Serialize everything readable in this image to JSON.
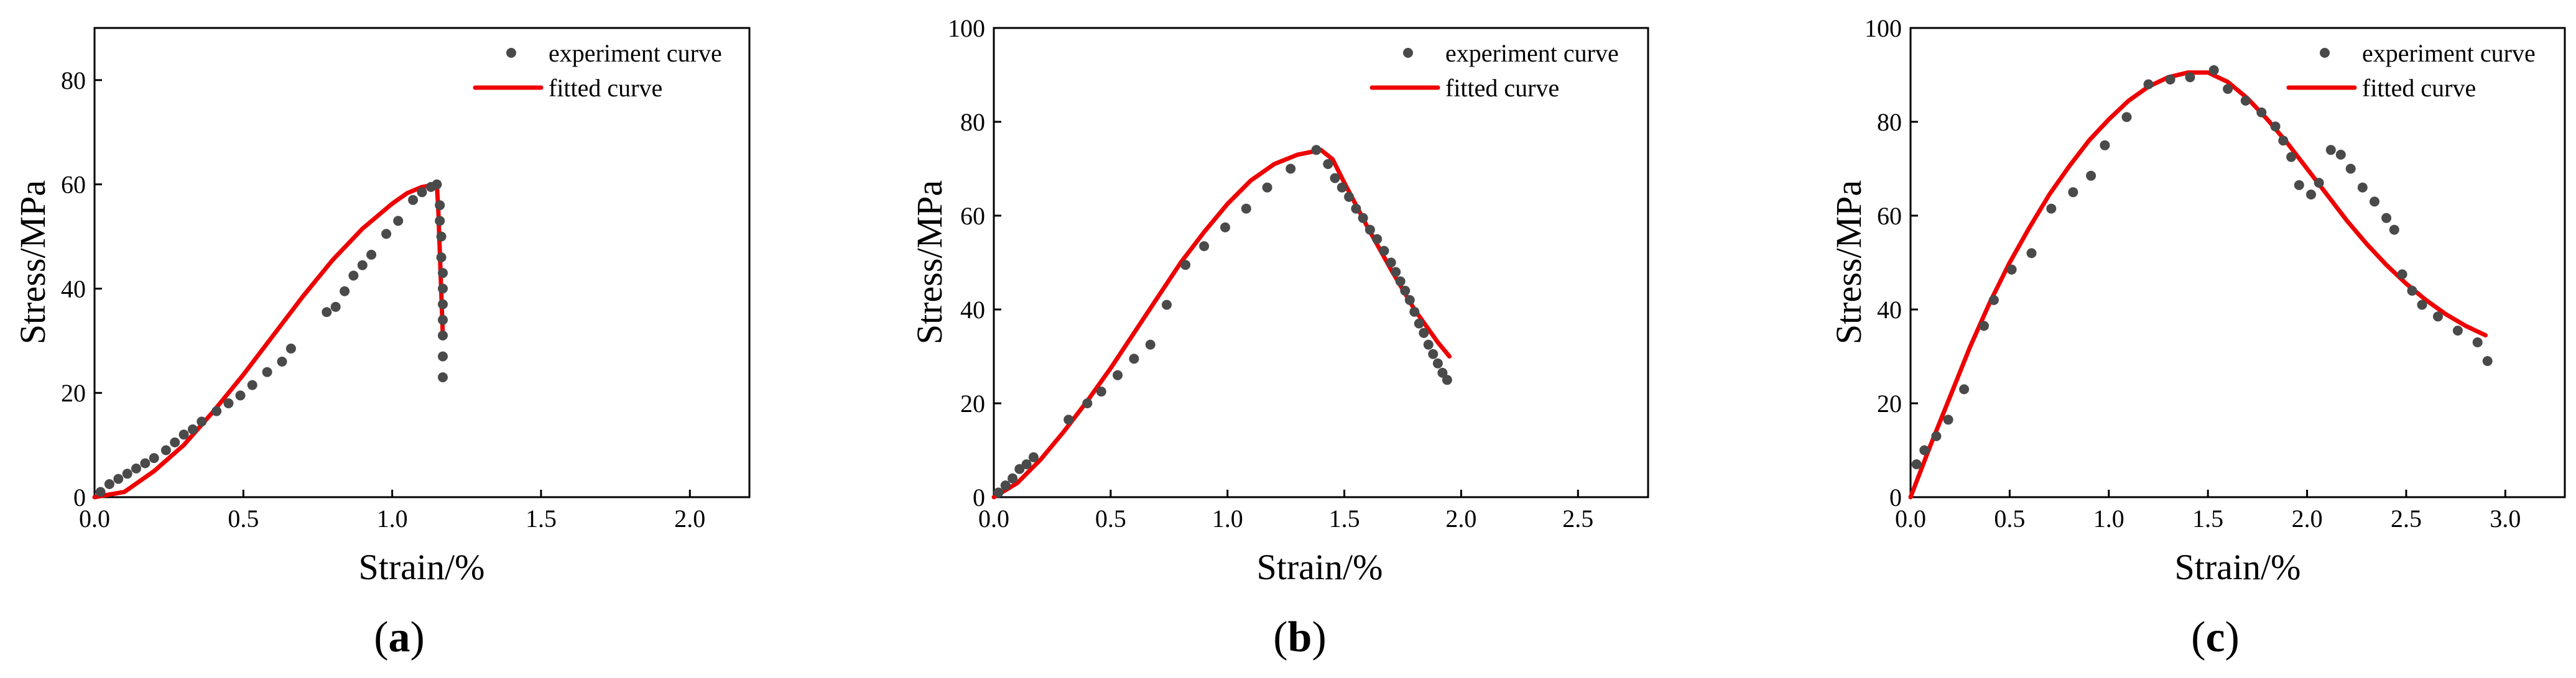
{
  "chart_data": [
    {
      "type": "scatter",
      "panel_label": "a",
      "xlabel": "Strain/%",
      "ylabel": "Stress/MPa",
      "xlim": [
        0,
        2.2
      ],
      "ylim": [
        0,
        90
      ],
      "xticks": [
        "0.0",
        "0.5",
        "1.0",
        "1.5",
        "2.0"
      ],
      "xtick_values": [
        0,
        0.5,
        1.0,
        1.5,
        2.0
      ],
      "yticks": [
        "0",
        "20",
        "40",
        "60",
        "80"
      ],
      "ytick_values": [
        0,
        20,
        40,
        60,
        80
      ],
      "legend": {
        "position": "top-right",
        "experiment": "experiment curve",
        "fitted": "fitted curve"
      },
      "series": [
        {
          "name": "experiment curve",
          "kind": "scatter",
          "x": [
            0.02,
            0.05,
            0.08,
            0.11,
            0.14,
            0.17,
            0.2,
            0.24,
            0.27,
            0.3,
            0.33,
            0.36,
            0.41,
            0.45,
            0.49,
            0.53,
            0.58,
            0.63,
            0.66,
            0.78,
            0.81,
            0.84,
            0.87,
            0.9,
            0.93,
            0.98,
            1.02,
            1.07,
            1.1,
            1.13,
            1.15,
            1.16,
            1.16,
            1.165,
            1.165,
            1.17,
            1.17,
            1.17,
            1.17,
            1.17,
            1.17,
            1.17
          ],
          "y": [
            1,
            2.5,
            3.5,
            4.5,
            5.5,
            6.5,
            7.5,
            9,
            10.5,
            12,
            13,
            14.5,
            16.5,
            18,
            19.5,
            21.5,
            24,
            26,
            28.5,
            35.5,
            36.5,
            39.5,
            42.5,
            44.5,
            46.5,
            50.5,
            53,
            57,
            58.5,
            59.5,
            60,
            56,
            53,
            50,
            46,
            43,
            40,
            37,
            34,
            31,
            27,
            23
          ]
        },
        {
          "name": "fitted curve",
          "kind": "line",
          "x": [
            0.0,
            0.1,
            0.2,
            0.3,
            0.4,
            0.5,
            0.6,
            0.7,
            0.8,
            0.9,
            1.0,
            1.05,
            1.1,
            1.15,
            1.155,
            1.16,
            1.165,
            1.17
          ],
          "y": [
            0,
            1,
            5,
            10,
            16.5,
            23.5,
            31,
            38.5,
            45.5,
            51.5,
            56.3,
            58.3,
            59.5,
            60,
            55,
            47,
            39,
            31
          ]
        }
      ]
    },
    {
      "type": "scatter",
      "panel_label": "b",
      "xlabel": "Strain/%",
      "ylabel": "Stress/MPa",
      "xlim": [
        0,
        2.8
      ],
      "ylim": [
        0,
        100
      ],
      "xticks": [
        "0.0",
        "0.5",
        "1.0",
        "1.5",
        "2.0",
        "2.5"
      ],
      "xtick_values": [
        0,
        0.5,
        1.0,
        1.5,
        2.0,
        2.5
      ],
      "yticks": [
        "0",
        "20",
        "40",
        "60",
        "80",
        "100"
      ],
      "ytick_values": [
        0,
        20,
        40,
        60,
        80,
        100
      ],
      "legend": {
        "position": "top-right",
        "experiment": "experiment curve",
        "fitted": "fitted curve"
      },
      "series": [
        {
          "name": "experiment curve",
          "kind": "scatter",
          "x": [
            0.02,
            0.05,
            0.08,
            0.11,
            0.14,
            0.17,
            0.32,
            0.4,
            0.46,
            0.53,
            0.6,
            0.67,
            0.74,
            0.82,
            0.9,
            0.99,
            1.08,
            1.17,
            1.27,
            1.38,
            1.43,
            1.46,
            1.49,
            1.52,
            1.55,
            1.58,
            1.61,
            1.64,
            1.67,
            1.7,
            1.72,
            1.74,
            1.76,
            1.78,
            1.8,
            1.82,
            1.84,
            1.86,
            1.88,
            1.9,
            1.92,
            1.94
          ],
          "y": [
            1,
            2.5,
            4,
            6,
            7,
            8.5,
            16.5,
            20,
            22.5,
            26,
            29.5,
            32.5,
            41,
            49.5,
            53.5,
            57.5,
            61.5,
            66,
            70,
            74,
            71,
            68,
            66,
            64,
            61.5,
            59.5,
            57,
            55,
            52.5,
            50,
            48,
            46,
            44,
            42,
            39.5,
            37,
            35,
            32.5,
            30.5,
            28.5,
            26.5,
            25
          ]
        },
        {
          "name": "fitted curve",
          "kind": "line",
          "x": [
            0.0,
            0.1,
            0.2,
            0.3,
            0.4,
            0.5,
            0.6,
            0.7,
            0.8,
            0.9,
            1.0,
            1.1,
            1.2,
            1.3,
            1.4,
            1.45,
            1.5,
            1.6,
            1.7,
            1.8,
            1.9,
            1.95
          ],
          "y": [
            0,
            3,
            8,
            14,
            20.5,
            27.5,
            35,
            42.5,
            50,
            56.5,
            62.5,
            67.5,
            71,
            73,
            74,
            72,
            67,
            57.5,
            48.5,
            40,
            33,
            30
          ]
        }
      ]
    },
    {
      "type": "scatter",
      "panel_label": "c",
      "xlabel": "Strain/%",
      "ylabel": "Stress/MPa",
      "xlim": [
        0,
        3.3
      ],
      "ylim": [
        0,
        100
      ],
      "xticks": [
        "0.0",
        "0.5",
        "1.0",
        "1.5",
        "2.0",
        "2.5",
        "3.0"
      ],
      "xtick_values": [
        0,
        0.5,
        1.0,
        1.5,
        2.0,
        2.5,
        3.0
      ],
      "yticks": [
        "0",
        "20",
        "40",
        "60",
        "80",
        "100"
      ],
      "ytick_values": [
        0,
        20,
        40,
        60,
        80,
        100
      ],
      "legend": {
        "position": "top-right",
        "experiment": "experiment curve",
        "fitted": "fitted curve"
      },
      "series": [
        {
          "name": "experiment curve",
          "kind": "scatter",
          "x": [
            0.03,
            0.07,
            0.13,
            0.19,
            0.27,
            0.37,
            0.42,
            0.51,
            0.61,
            0.71,
            0.82,
            0.91,
            0.98,
            1.09,
            1.2,
            1.31,
            1.41,
            1.53,
            1.6,
            1.69,
            1.77,
            1.84,
            1.88,
            1.92,
            1.96,
            2.02,
            2.06,
            2.12,
            2.17,
            2.22,
            2.28,
            2.34,
            2.4,
            2.44,
            2.48,
            2.53,
            2.58,
            2.66,
            2.76,
            2.86,
            2.91
          ],
          "y": [
            7,
            10,
            13,
            16.5,
            23,
            36.5,
            42,
            48.5,
            52,
            61.5,
            65,
            68.5,
            75,
            81,
            88,
            89,
            89.5,
            91,
            87,
            84.5,
            82,
            79,
            76,
            72.5,
            66.5,
            64.5,
            67,
            74,
            73,
            70,
            66,
            63,
            59.5,
            57,
            47.5,
            44,
            41,
            38.5,
            35.5,
            33,
            29
          ]
        },
        {
          "name": "fitted curve",
          "kind": "line",
          "x": [
            0.0,
            0.1,
            0.2,
            0.3,
            0.4,
            0.5,
            0.6,
            0.7,
            0.8,
            0.9,
            1.0,
            1.1,
            1.2,
            1.3,
            1.4,
            1.5,
            1.6,
            1.7,
            1.8,
            1.9,
            2.0,
            2.1,
            2.2,
            2.3,
            2.4,
            2.5,
            2.6,
            2.7,
            2.8,
            2.9
          ],
          "y": [
            0,
            11,
            21.5,
            32,
            41.5,
            50,
            57.5,
            64.5,
            70.5,
            76,
            80.5,
            84.5,
            87.5,
            89.5,
            90.5,
            90.5,
            88.5,
            85,
            80.5,
            75.5,
            70,
            64.5,
            59,
            54,
            49.5,
            45.5,
            42,
            39,
            36.5,
            34.5
          ]
        }
      ]
    }
  ]
}
